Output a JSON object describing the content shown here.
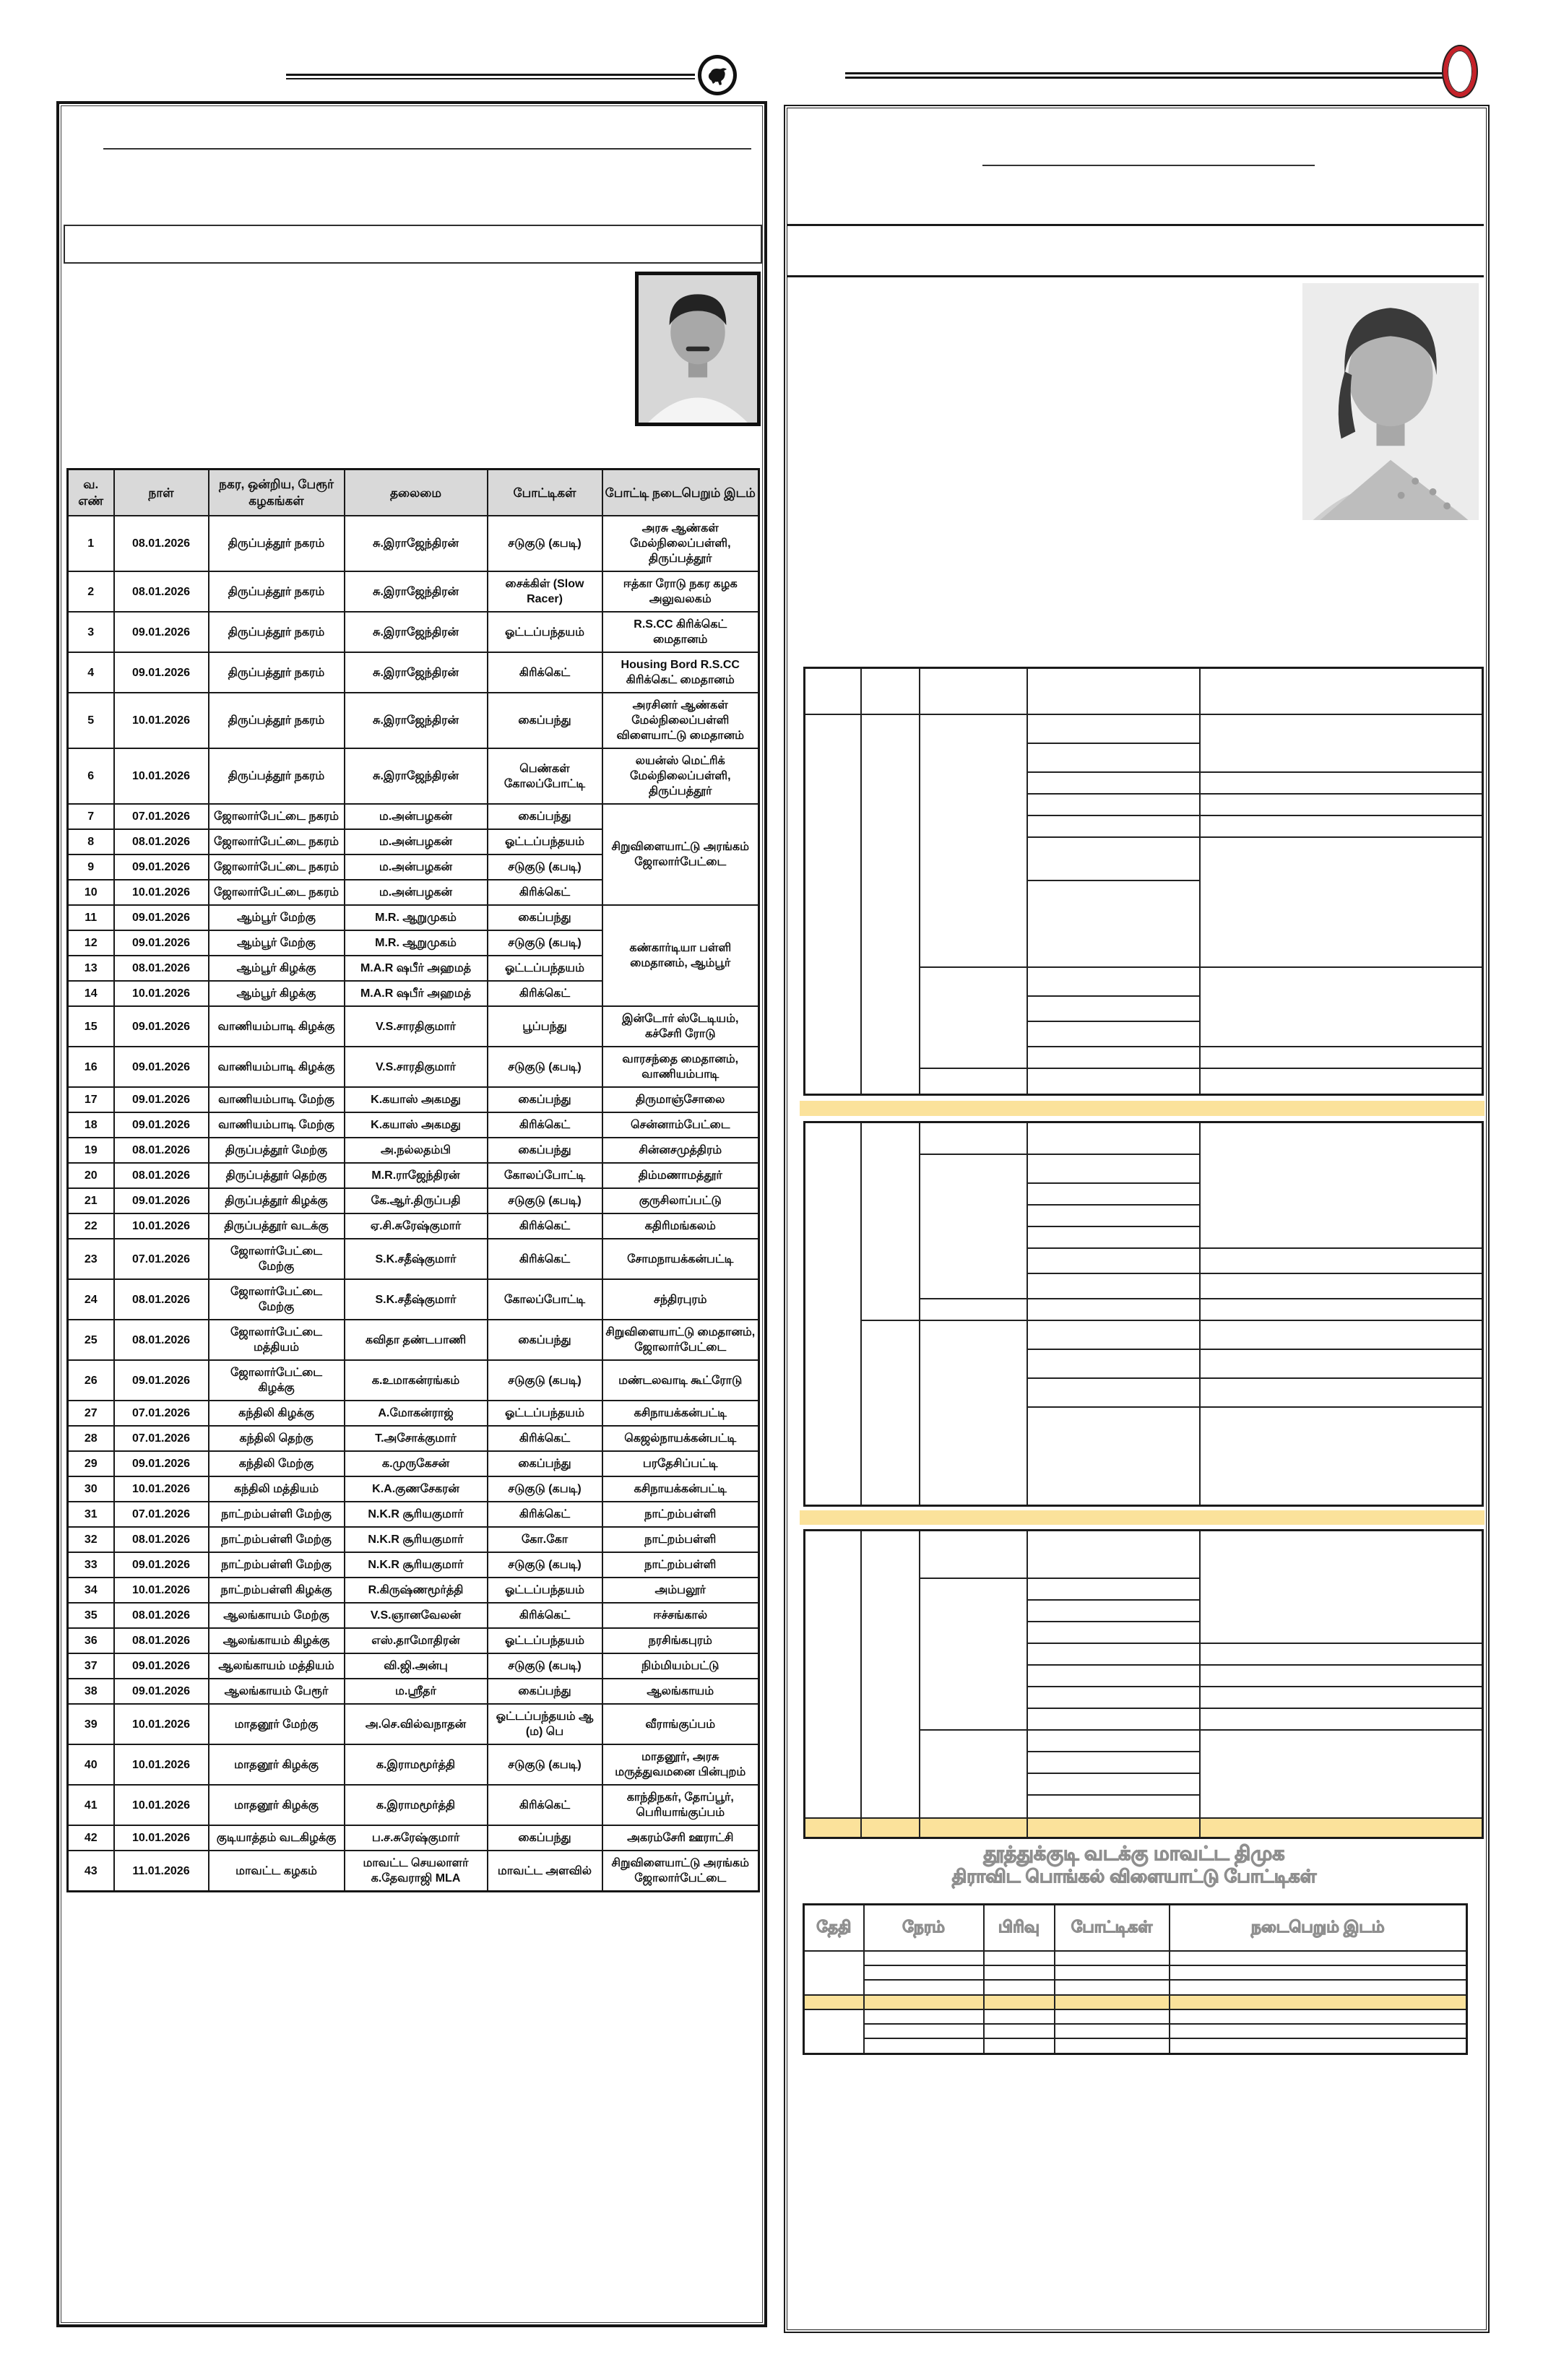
{
  "colors": {
    "highlight_yellow": "#fbe29b",
    "table_header_gray": "#d9d9d9",
    "red_oval": "#c5222a",
    "ink": "#1a1a1a"
  },
  "masthead": {
    "left_emblem": "bull-in-circle",
    "right_emblem": "red-oval-ring"
  },
  "left_panel": {
    "photo": "male-leader-portrait",
    "table": {
      "headers": [
        "வ. எண்",
        "நாள்",
        "நகர, ஒன்றிய, பேரூர் கழகங்கள்",
        "தலைமை",
        "போட்டிகள்",
        "போட்டி நடைபெறும் இடம்"
      ],
      "rows": [
        {
          "no": "1",
          "date": "08.01.2026",
          "union": "திருப்பத்தூர் நகரம்",
          "leader": "சு.இராஜேந்திரன்",
          "event": "சடுகுடு (கபடி)",
          "venue": "அரசு ஆண்கள் மேல்நிலைப்பள்ளி, திருப்பத்தூர்"
        },
        {
          "no": "2",
          "date": "08.01.2026",
          "union": "திருப்பத்தூர் நகரம்",
          "leader": "சு.இராஜேந்திரன்",
          "event": "சைக்கிள் (Slow Racer)",
          "venue": "ஈத்கா ரோடு நகர கழக அலுவலகம்"
        },
        {
          "no": "3",
          "date": "09.01.2026",
          "union": "திருப்பத்தூர் நகரம்",
          "leader": "சு.இராஜேந்திரன்",
          "event": "ஓட்டப்பந்தயம்",
          "venue": "R.S.CC கிரிக்கெட் மைதானம்"
        },
        {
          "no": "4",
          "date": "09.01.2026",
          "union": "திருப்பத்தூர் நகரம்",
          "leader": "சு.இராஜேந்திரன்",
          "event": "கிரிக்கெட்",
          "venue": "Housing Bord R.S.CC கிரிக்கெட் மைதானம்"
        },
        {
          "no": "5",
          "date": "10.01.2026",
          "union": "திருப்பத்தூர் நகரம்",
          "leader": "சு.இராஜேந்திரன்",
          "event": "கைப்பந்து",
          "venue": "அரசினர் ஆண்கள் மேல்நிலைப்பள்ளி விளையாட்டு மைதானம்"
        },
        {
          "no": "6",
          "date": "10.01.2026",
          "union": "திருப்பத்தூர் நகரம்",
          "leader": "சு.இராஜேந்திரன்",
          "event": "பெண்கள் கோலப்போட்டி",
          "venue": "லயன்ஸ் மெட்ரிக் மேல்நிலைப்பள்ளி, திருப்பத்தூர்"
        },
        {
          "no": "7",
          "date": "07.01.2026",
          "union": "ஜோலார்பேட்டை நகரம்",
          "leader": "ம.அன்பழகன்",
          "event": "கைப்பந்து",
          "venue": "சிறுவிளையாட்டு அரங்கம் ஜோலார்பேட்டை",
          "venue_rowspan": 4
        },
        {
          "no": "8",
          "date": "08.01.2026",
          "union": "ஜோலார்பேட்டை நகரம்",
          "leader": "ம.அன்பழகன்",
          "event": "ஓட்டப்பந்தயம்",
          "venue": null
        },
        {
          "no": "9",
          "date": "09.01.2026",
          "union": "ஜோலார்பேட்டை நகரம்",
          "leader": "ம.அன்பழகன்",
          "event": "சடுகுடு (கபடி)",
          "venue": null
        },
        {
          "no": "10",
          "date": "10.01.2026",
          "union": "ஜோலார்பேட்டை நகரம்",
          "leader": "ம.அன்பழகன்",
          "event": "கிரிக்கெட்",
          "venue": null
        },
        {
          "no": "11",
          "date": "09.01.2026",
          "union": "ஆம்பூர் மேற்கு",
          "leader": "M.R. ஆறுமுகம்",
          "event": "கைப்பந்து",
          "venue": "கண்கார்டியா பள்ளி மைதானம், ஆம்பூர்",
          "venue_rowspan": 4
        },
        {
          "no": "12",
          "date": "09.01.2026",
          "union": "ஆம்பூர் மேற்கு",
          "leader": "M.R. ஆறுமுகம்",
          "event": "சடுகுடு (கபடி)",
          "venue": null
        },
        {
          "no": "13",
          "date": "08.01.2026",
          "union": "ஆம்பூர் கிழக்கு",
          "leader": "M.A.R ஷபீர் அஹமத்",
          "event": "ஓட்டப்பந்தயம்",
          "venue": null
        },
        {
          "no": "14",
          "date": "10.01.2026",
          "union": "ஆம்பூர் கிழக்கு",
          "leader": "M.A.R ஷபீர் அஹமத்",
          "event": "கிரிக்கெட்",
          "venue": null
        },
        {
          "no": "15",
          "date": "09.01.2026",
          "union": "வாணியம்பாடி கிழக்கு",
          "leader": "V.S.சாரதிகுமார்",
          "event": "பூப்பந்து",
          "venue": "இன்டோர் ஸ்டேடியம், கச்சேரி ரோடு"
        },
        {
          "no": "16",
          "date": "09.01.2026",
          "union": "வாணியம்பாடி கிழக்கு",
          "leader": "V.S.சாரதிகுமார்",
          "event": "சடுகுடு (கபடி)",
          "venue": "வாரசந்தை மைதானம், வாணியம்பாடி"
        },
        {
          "no": "17",
          "date": "09.01.2026",
          "union": "வாணியம்பாடி மேற்கு",
          "leader": "K.கயாஸ் அகமது",
          "event": "கைப்பந்து",
          "venue": "திருமாஞ்சோலை"
        },
        {
          "no": "18",
          "date": "09.01.2026",
          "union": "வாணியம்பாடி மேற்கு",
          "leader": "K.கயாஸ் அகமது",
          "event": "கிரிக்கெட்",
          "venue": "சென்னாம்பேட்டை"
        },
        {
          "no": "19",
          "date": "08.01.2026",
          "union": "திருப்பத்தூர் மேற்கு",
          "leader": "அ.நல்லதம்பி",
          "event": "கைப்பந்து",
          "venue": "சின்னசமுத்திரம்"
        },
        {
          "no": "20",
          "date": "08.01.2026",
          "union": "திருப்பத்தூர் தெற்கு",
          "leader": "M.R.ராஜேந்திரன்",
          "event": "கோலப்போட்டி",
          "venue": "திம்மணாமத்தூர்"
        },
        {
          "no": "21",
          "date": "09.01.2026",
          "union": "திருப்பத்தூர் கிழக்கு",
          "leader": "கே.ஆர்.திருப்பதி",
          "event": "சடுகுடு (கபடி)",
          "venue": "குருசிலாப்பட்டு"
        },
        {
          "no": "22",
          "date": "10.01.2026",
          "union": "திருப்பத்தூர் வடக்கு",
          "leader": "ஏ.சி.சுரேஷ்குமார்",
          "event": "கிரிக்கெட்",
          "venue": "கதிரிமங்கலம்"
        },
        {
          "no": "23",
          "date": "07.01.2026",
          "union": "ஜோலார்பேட்டை மேற்கு",
          "leader": "S.K.சதீஷ்குமார்",
          "event": "கிரிக்கெட்",
          "venue": "சோமநாயக்கன்பட்டி"
        },
        {
          "no": "24",
          "date": "08.01.2026",
          "union": "ஜோலார்பேட்டை மேற்கு",
          "leader": "S.K.சதீஷ்குமார்",
          "event": "கோலப்போட்டி",
          "venue": "சந்திரபுரம்"
        },
        {
          "no": "25",
          "date": "08.01.2026",
          "union": "ஜோலார்பேட்டை மத்தியம்",
          "leader": "கவிதா தண்டபாணி",
          "event": "கைப்பந்து",
          "venue": "சிறுவிளையாட்டு மைதானம், ஜோலார்பேட்டை"
        },
        {
          "no": "26",
          "date": "09.01.2026",
          "union": "ஜோலார்பேட்டை கிழக்கு",
          "leader": "க.உமாகன்ரங்கம்",
          "event": "சடுகுடு (கபடி)",
          "venue": "மண்டலவாடி கூட்ரோடு"
        },
        {
          "no": "27",
          "date": "07.01.2026",
          "union": "கந்திலி கிழக்கு",
          "leader": "A.மோகன்ராஜ்",
          "event": "ஓட்டப்பந்தயம்",
          "venue": "கசிநாயக்கன்பட்டி"
        },
        {
          "no": "28",
          "date": "07.01.2026",
          "union": "கந்திலி தெற்கு",
          "leader": "T.அசோக்குமார்",
          "event": "கிரிக்கெட்",
          "venue": "கெஜல்நாயக்கன்பட்டி"
        },
        {
          "no": "29",
          "date": "09.01.2026",
          "union": "கந்திலி மேற்கு",
          "leader": "க.முருகேசன்",
          "event": "கைப்பந்து",
          "venue": "பரதேசிப்பட்டி"
        },
        {
          "no": "30",
          "date": "10.01.2026",
          "union": "கந்திலி மத்தியம்",
          "leader": "K.A.குணசேகரன்",
          "event": "சடுகுடு (கபடி)",
          "venue": "கசிநாயக்கன்பட்டி"
        },
        {
          "no": "31",
          "date": "07.01.2026",
          "union": "நாட்றம்பள்ளி மேற்கு",
          "leader": "N.K.R சூரியகுமார்",
          "event": "கிரிக்கெட்",
          "venue": "நாட்றம்பள்ளி"
        },
        {
          "no": "32",
          "date": "08.01.2026",
          "union": "நாட்றம்பள்ளி மேற்கு",
          "leader": "N.K.R சூரியகுமார்",
          "event": "கோ.கோ",
          "venue": "நாட்றம்பள்ளி"
        },
        {
          "no": "33",
          "date": "09.01.2026",
          "union": "நாட்றம்பள்ளி மேற்கு",
          "leader": "N.K.R சூரியகுமார்",
          "event": "சடுகுடு (கபடி)",
          "venue": "நாட்றம்பள்ளி"
        },
        {
          "no": "34",
          "date": "10.01.2026",
          "union": "நாட்றம்பள்ளி கிழக்கு",
          "leader": "R.கிருஷ்ணமூர்த்தி",
          "event": "ஓட்டப்பந்தயம்",
          "venue": "அம்பலூர்"
        },
        {
          "no": "35",
          "date": "08.01.2026",
          "union": "ஆலங்காயம் மேற்கு",
          "leader": "V.S.ஞானவேலன்",
          "event": "கிரிக்கெட்",
          "venue": "ஈச்சங்கால்"
        },
        {
          "no": "36",
          "date": "08.01.2026",
          "union": "ஆலங்காயம் கிழக்கு",
          "leader": "எஸ்.தாமோதிரன்",
          "event": "ஓட்டப்பந்தயம்",
          "venue": "நரசிங்கபுரம்"
        },
        {
          "no": "37",
          "date": "09.01.2026",
          "union": "ஆலங்காயம் மத்தியம்",
          "leader": "வி.ஜி.அன்பு",
          "event": "சடுகுடு (கபடி)",
          "venue": "நிம்மியம்பட்டு"
        },
        {
          "no": "38",
          "date": "09.01.2026",
          "union": "ஆலங்காயம் பேரூர்",
          "leader": "ம.ஸ்ரீதர்",
          "event": "கைப்பந்து",
          "venue": "ஆலங்காயம்"
        },
        {
          "no": "39",
          "date": "10.01.2026",
          "union": "மாதனூர் மேற்கு",
          "leader": "அ.செ.வில்வநாதன்",
          "event": "ஓட்டப்பந்தயம் ஆ (ம) பெ",
          "venue": "வீராங்குப்பம்"
        },
        {
          "no": "40",
          "date": "10.01.2026",
          "union": "மாதனூர் கிழக்கு",
          "leader": "க.இராமமூர்த்தி",
          "event": "சடுகுடு (கபடி)",
          "venue": "மாதனூர், அரசு மருத்துவமனை பின்புறம்"
        },
        {
          "no": "41",
          "date": "10.01.2026",
          "union": "மாதனூர் கிழக்கு",
          "leader": "க.இராமமூர்த்தி",
          "event": "கிரிக்கெட்",
          "venue": "காந்திநகர், தோப்பூர், பெரியாங்குப்பம்"
        },
        {
          "no": "42",
          "date": "10.01.2026",
          "union": "குடியாத்தம் வடகிழக்கு",
          "leader": "ப.ச.சுரேஷ்குமார்",
          "event": "கைப்பந்து",
          "venue": "அகரம்சேரி ஊராட்சி"
        },
        {
          "no": "43",
          "date": "11.01.2026",
          "union": "மாவட்ட கழகம்",
          "leader": "மாவட்ட செயலாளர் க.தேவராஜி MLA",
          "event": "மாவட்ட அளவில்",
          "venue": "சிறுவிளையாட்டு அரங்கம் ஜோலார்பேட்டை"
        }
      ]
    }
  },
  "right_panel": {
    "photo": "female-leader-portrait",
    "title_line1": "தூத்துக்குடி வடக்கு மாவட்ட திமுக",
    "title_line2": "திராவிட பொங்கல்  விளையாட்டு போட்டிகள்",
    "bottom_table": {
      "headers": [
        "தேதி",
        "நேரம்",
        "பிரிவு",
        "போட்டிகள்",
        "நடைபெறும் இடம்"
      ]
    }
  }
}
